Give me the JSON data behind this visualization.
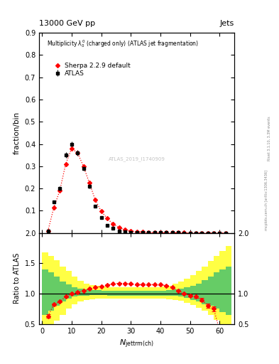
{
  "title_top": "13000 GeV pp",
  "title_right": "Jets",
  "main_title": "Multiplicity $\\lambda_0^0$ (charged only) (ATLAS jet fragmentation)",
  "ylabel_main": "fraction/bin",
  "ylabel_ratio": "Ratio to ATLAS",
  "xlabel": "$N_{\\mathrm{jettrm(ch)}}$",
  "watermark": "ATLAS_2019_I1740909",
  "rivet_text": "Rivet 3.1.10, 3.3M events",
  "inspire_text": "[arXiv:1306.3436]",
  "mcplots_text": "mcplots.cern.ch",
  "atlas_label": "ATLAS",
  "sherpa_label": "Sherpa 2.2.9 default",
  "main_ylim": [
    0.0,
    0.9
  ],
  "ratio_ylim": [
    0.5,
    2.0
  ],
  "xlim": [
    -1,
    65
  ],
  "atlas_x": [
    2,
    4,
    6,
    8,
    10,
    12,
    14,
    16,
    18,
    20,
    22,
    24,
    26,
    28,
    30,
    32,
    34,
    36,
    38,
    40,
    42,
    44,
    46,
    48,
    50,
    52,
    54,
    56,
    58,
    60,
    62
  ],
  "atlas_y": [
    0.01,
    0.14,
    0.2,
    0.35,
    0.4,
    0.36,
    0.29,
    0.21,
    0.12,
    0.07,
    0.035,
    0.02,
    0.01,
    0.005,
    0.003,
    0.002,
    0.002,
    0.001,
    0.001,
    0.001,
    0.001,
    0.001,
    0.001,
    0.0005,
    0.0005,
    0.0005,
    0.0005,
    0.0005,
    0.0005,
    0.0005,
    0.0005
  ],
  "atlas_yerr": [
    0.002,
    0.007,
    0.01,
    0.012,
    0.012,
    0.012,
    0.01,
    0.009,
    0.006,
    0.004,
    0.003,
    0.002,
    0.001,
    0.001,
    0.001,
    0.001,
    0.001,
    0.001,
    0.001,
    0.001,
    0.001,
    0.001,
    0.001,
    0.0005,
    0.0005,
    0.0005,
    0.0005,
    0.0005,
    0.0005,
    0.0005,
    0.0005
  ],
  "sherpa_x": [
    2,
    4,
    6,
    8,
    10,
    12,
    14,
    16,
    18,
    20,
    22,
    24,
    26,
    28,
    30,
    32,
    34,
    36,
    38,
    40,
    42,
    44,
    46,
    48,
    50,
    52,
    54,
    56,
    58,
    60,
    62
  ],
  "sherpa_y": [
    0.009,
    0.115,
    0.19,
    0.31,
    0.38,
    0.36,
    0.3,
    0.225,
    0.148,
    0.098,
    0.065,
    0.04,
    0.025,
    0.015,
    0.009,
    0.006,
    0.004,
    0.003,
    0.002,
    0.0015,
    0.001,
    0.001,
    0.0008,
    0.0006,
    0.0005,
    0.0005,
    0.0005,
    0.0005,
    0.0005,
    0.0005,
    0.0005
  ],
  "ratio_x": [
    2,
    4,
    6,
    8,
    10,
    12,
    14,
    16,
    18,
    20,
    22,
    24,
    26,
    28,
    30,
    32,
    34,
    36,
    38,
    40,
    42,
    44,
    46,
    48,
    50,
    52,
    54,
    56,
    58,
    60,
    62
  ],
  "ratio_y": [
    0.63,
    0.82,
    0.87,
    0.95,
    1.0,
    1.02,
    1.05,
    1.08,
    1.1,
    1.12,
    1.14,
    1.16,
    1.17,
    1.17,
    1.16,
    1.15,
    1.15,
    1.15,
    1.15,
    1.15,
    1.13,
    1.1,
    1.05,
    1.0,
    0.97,
    0.95,
    0.9,
    0.8,
    0.75,
    0.4,
    0.38
  ],
  "ratio_yerr": [
    0.03,
    0.02,
    0.015,
    0.01,
    0.01,
    0.01,
    0.008,
    0.008,
    0.007,
    0.007,
    0.007,
    0.006,
    0.006,
    0.006,
    0.006,
    0.006,
    0.006,
    0.006,
    0.006,
    0.007,
    0.007,
    0.008,
    0.009,
    0.01,
    0.015,
    0.02,
    0.025,
    0.035,
    0.04,
    0.06,
    0.08
  ],
  "green_band_edges": [
    0,
    2,
    4,
    6,
    8,
    10,
    12,
    14,
    16,
    18,
    20,
    22,
    24,
    26,
    28,
    30,
    32,
    34,
    36,
    38,
    40,
    42,
    44,
    46,
    48,
    50,
    52,
    54,
    56,
    58,
    60,
    62,
    64
  ],
  "green_band_ylow": [
    0.65,
    0.72,
    0.8,
    0.87,
    0.92,
    0.95,
    0.97,
    0.97,
    0.98,
    0.98,
    0.98,
    0.97,
    0.97,
    0.97,
    0.97,
    0.97,
    0.97,
    0.97,
    0.97,
    0.97,
    0.97,
    0.97,
    0.97,
    0.95,
    0.93,
    0.9,
    0.87,
    0.83,
    0.8,
    0.75,
    0.7,
    0.65,
    0.6
  ],
  "green_band_yhigh": [
    1.4,
    1.35,
    1.28,
    1.2,
    1.15,
    1.1,
    1.08,
    1.07,
    1.06,
    1.06,
    1.05,
    1.05,
    1.05,
    1.05,
    1.05,
    1.05,
    1.05,
    1.05,
    1.05,
    1.05,
    1.05,
    1.06,
    1.07,
    1.08,
    1.1,
    1.13,
    1.17,
    1.22,
    1.28,
    1.35,
    1.4,
    1.45,
    1.5
  ],
  "yellow_band_edges": [
    0,
    2,
    4,
    6,
    8,
    10,
    12,
    14,
    16,
    18,
    20,
    22,
    24,
    26,
    28,
    30,
    32,
    34,
    36,
    38,
    40,
    42,
    44,
    46,
    48,
    50,
    52,
    54,
    56,
    58,
    60,
    62,
    64
  ],
  "yellow_band_ylow": [
    0.4,
    0.45,
    0.55,
    0.65,
    0.75,
    0.82,
    0.87,
    0.89,
    0.91,
    0.92,
    0.92,
    0.92,
    0.92,
    0.92,
    0.92,
    0.92,
    0.92,
    0.92,
    0.92,
    0.92,
    0.92,
    0.91,
    0.9,
    0.88,
    0.85,
    0.81,
    0.77,
    0.72,
    0.65,
    0.57,
    0.5,
    0.44,
    0.4
  ],
  "yellow_band_yhigh": [
    1.68,
    1.62,
    1.55,
    1.45,
    1.37,
    1.28,
    1.21,
    1.17,
    1.14,
    1.13,
    1.12,
    1.11,
    1.11,
    1.11,
    1.11,
    1.11,
    1.11,
    1.11,
    1.11,
    1.11,
    1.12,
    1.13,
    1.16,
    1.2,
    1.25,
    1.3,
    1.37,
    1.45,
    1.54,
    1.62,
    1.7,
    1.78,
    1.85
  ],
  "atlas_color": "black",
  "sherpa_color": "red",
  "green_color": "#66cc66",
  "yellow_color": "#ffff44",
  "bg_color": "white"
}
